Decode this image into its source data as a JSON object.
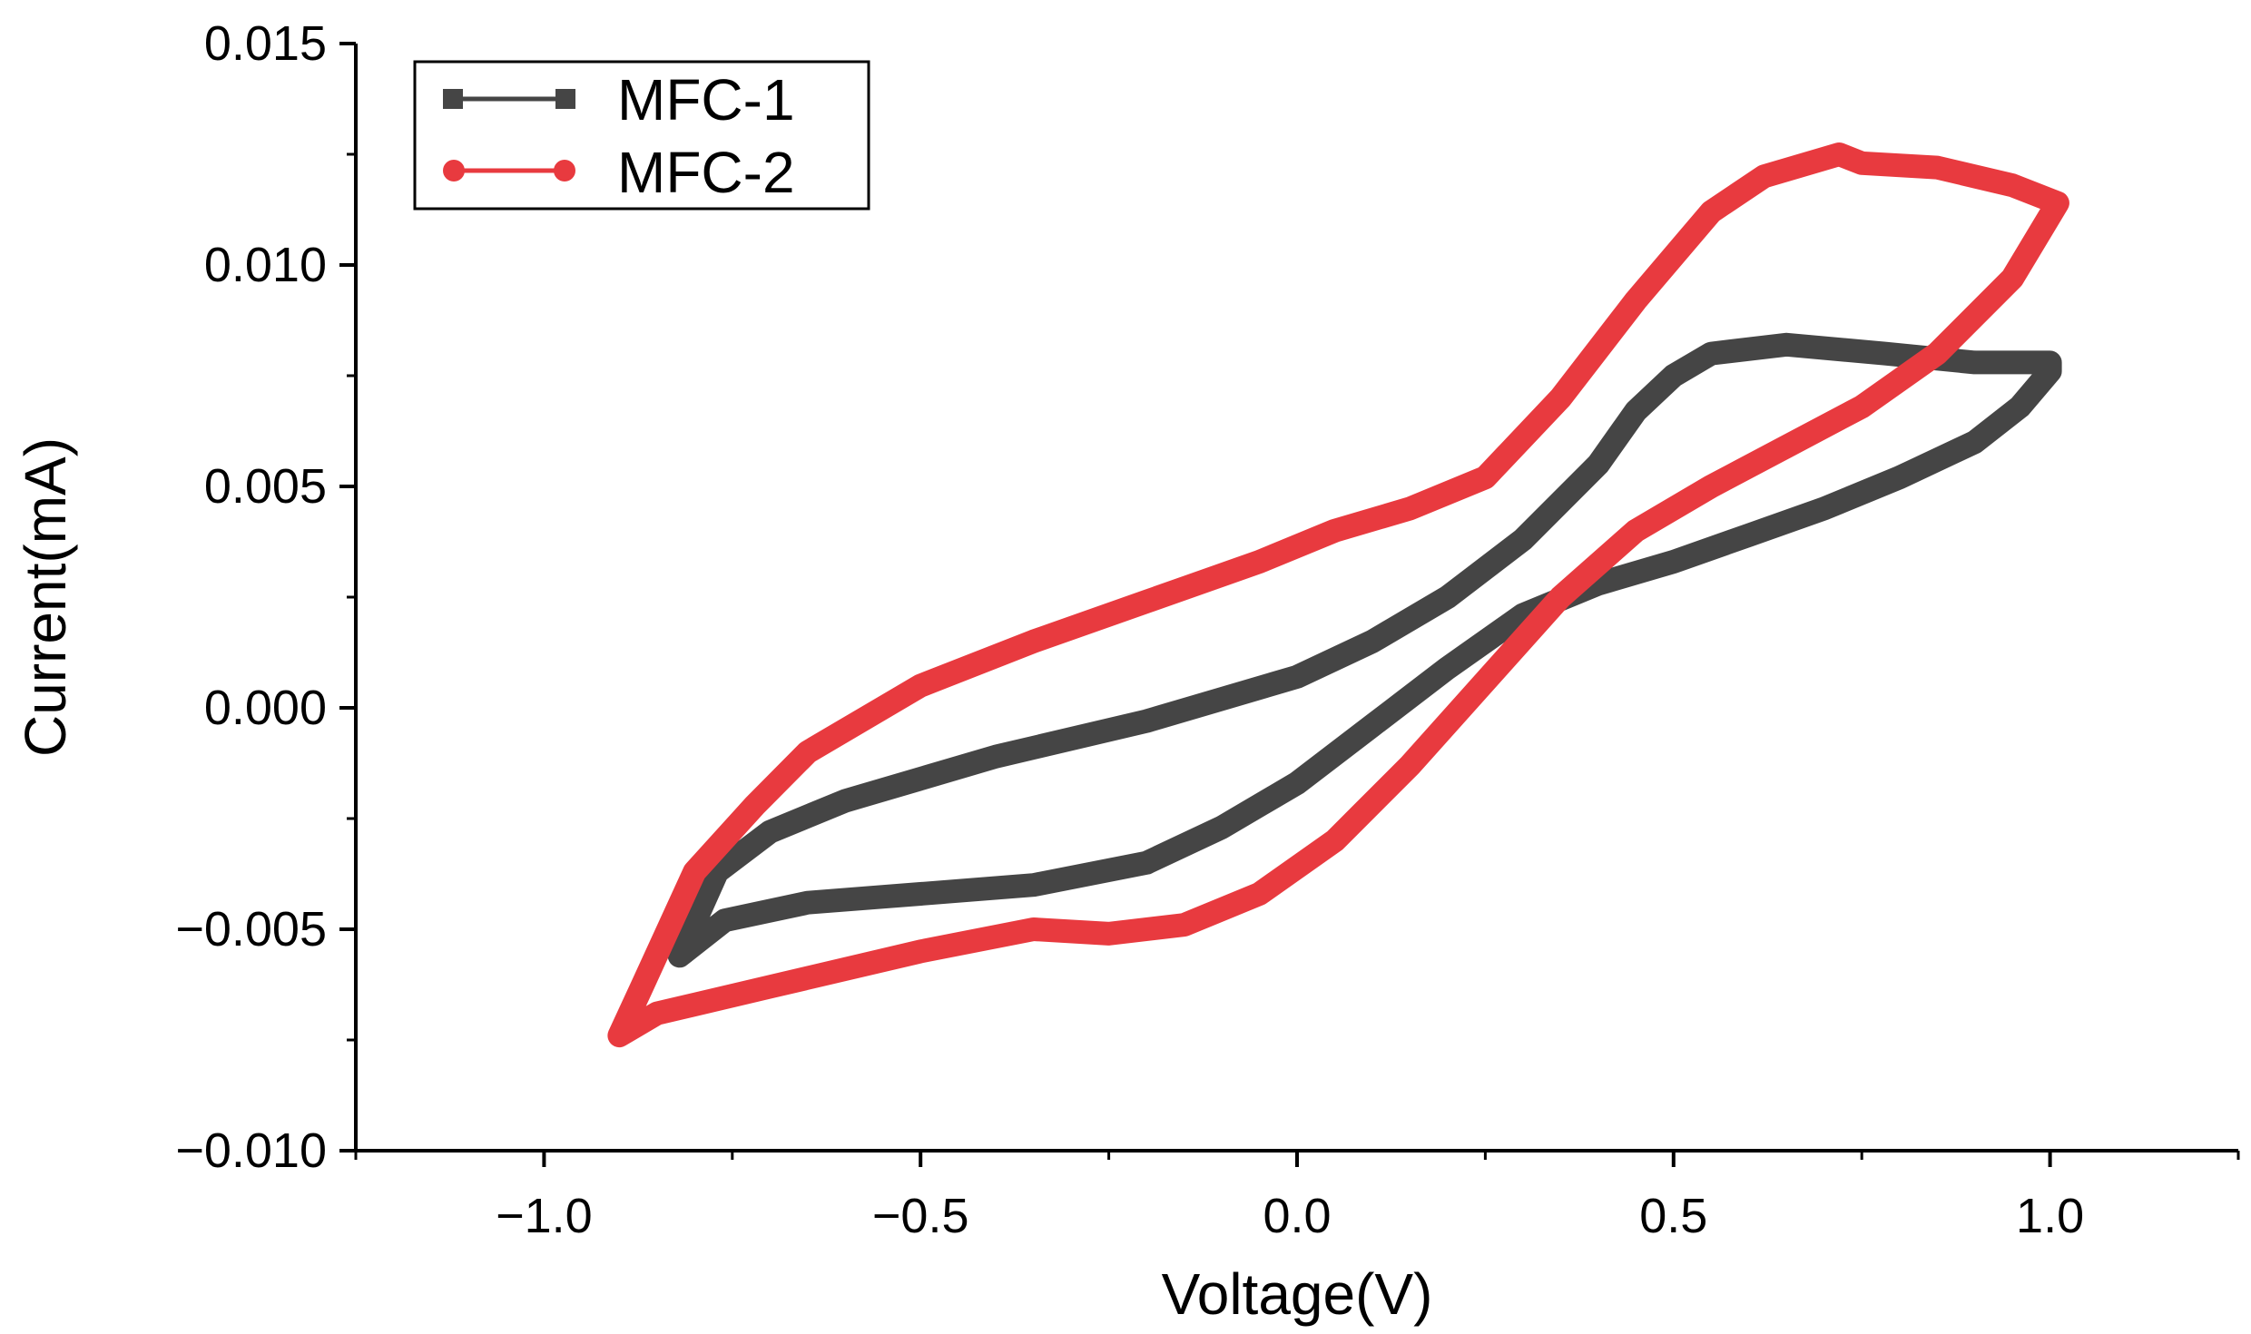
{
  "chart_data": {
    "type": "line",
    "title": "",
    "xlabel": "Voltage(V)",
    "ylabel": "Current(mA)",
    "xlim": [
      -1.25,
      1.25
    ],
    "ylim": [
      -0.01,
      0.015
    ],
    "x_ticks": [
      -1.0,
      -0.5,
      0.0,
      0.5,
      1.0
    ],
    "x_tick_labels": [
      "−1.0",
      "−0.5",
      "0.0",
      "0.5",
      "1.0"
    ],
    "y_ticks": [
      -0.01,
      -0.005,
      0.0,
      0.005,
      0.01,
      0.015
    ],
    "y_tick_labels": [
      "−0.010",
      "−0.005",
      "0.000",
      "0.005",
      "0.010",
      "0.015"
    ],
    "grid": false,
    "legend_position": "top-left",
    "series": [
      {
        "name": "MFC-1",
        "color": "#454545",
        "marker": "square",
        "points": [
          [
            -0.82,
            -0.0056
          ],
          [
            -0.76,
            -0.0048
          ],
          [
            -0.65,
            -0.0044
          ],
          [
            -0.5,
            -0.0042
          ],
          [
            -0.35,
            -0.004
          ],
          [
            -0.2,
            -0.0035
          ],
          [
            -0.1,
            -0.0027
          ],
          [
            0.0,
            -0.0017
          ],
          [
            0.1,
            -0.0004
          ],
          [
            0.2,
            0.0009
          ],
          [
            0.3,
            0.0021
          ],
          [
            0.4,
            0.0028
          ],
          [
            0.5,
            0.0033
          ],
          [
            0.6,
            0.0039
          ],
          [
            0.7,
            0.0045
          ],
          [
            0.8,
            0.0052
          ],
          [
            0.9,
            0.006
          ],
          [
            0.96,
            0.0068
          ],
          [
            1.0,
            0.0076
          ],
          [
            1.0,
            0.0078
          ],
          [
            0.9,
            0.0078
          ],
          [
            0.78,
            0.008
          ],
          [
            0.65,
            0.0082
          ],
          [
            0.55,
            0.008
          ],
          [
            0.5,
            0.0075
          ],
          [
            0.45,
            0.0067
          ],
          [
            0.4,
            0.0055
          ],
          [
            0.3,
            0.0038
          ],
          [
            0.2,
            0.0025
          ],
          [
            0.1,
            0.0015
          ],
          [
            0.0,
            0.0007
          ],
          [
            -0.2,
            -0.0003
          ],
          [
            -0.4,
            -0.0011
          ],
          [
            -0.6,
            -0.0021
          ],
          [
            -0.7,
            -0.0028
          ],
          [
            -0.77,
            -0.0037
          ],
          [
            -0.82,
            -0.0056
          ]
        ]
      },
      {
        "name": "MFC-2",
        "color": "#e83a3f",
        "marker": "circle",
        "points": [
          [
            -0.9,
            -0.0074
          ],
          [
            -0.85,
            -0.0069
          ],
          [
            -0.7,
            -0.0063
          ],
          [
            -0.5,
            -0.0055
          ],
          [
            -0.35,
            -0.005
          ],
          [
            -0.25,
            -0.0051
          ],
          [
            -0.15,
            -0.0049
          ],
          [
            -0.05,
            -0.0042
          ],
          [
            0.05,
            -0.003
          ],
          [
            0.15,
            -0.0013
          ],
          [
            0.25,
            0.0006
          ],
          [
            0.35,
            0.0025
          ],
          [
            0.45,
            0.004
          ],
          [
            0.55,
            0.005
          ],
          [
            0.65,
            0.0059
          ],
          [
            0.75,
            0.0068
          ],
          [
            0.85,
            0.008
          ],
          [
            0.95,
            0.0097
          ],
          [
            1.01,
            0.0114
          ],
          [
            0.95,
            0.0118
          ],
          [
            0.85,
            0.0122
          ],
          [
            0.75,
            0.0123
          ],
          [
            0.72,
            0.0125
          ],
          [
            0.62,
            0.012
          ],
          [
            0.55,
            0.0112
          ],
          [
            0.45,
            0.0092
          ],
          [
            0.35,
            0.007
          ],
          [
            0.25,
            0.0052
          ],
          [
            0.15,
            0.0045
          ],
          [
            0.05,
            0.004
          ],
          [
            -0.05,
            0.0033
          ],
          [
            -0.2,
            0.0024
          ],
          [
            -0.35,
            0.0015
          ],
          [
            -0.5,
            0.0005
          ],
          [
            -0.65,
            -0.001
          ],
          [
            -0.72,
            -0.0022
          ],
          [
            -0.8,
            -0.0037
          ],
          [
            -0.87,
            -0.0063
          ],
          [
            -0.9,
            -0.0074
          ]
        ]
      }
    ]
  }
}
